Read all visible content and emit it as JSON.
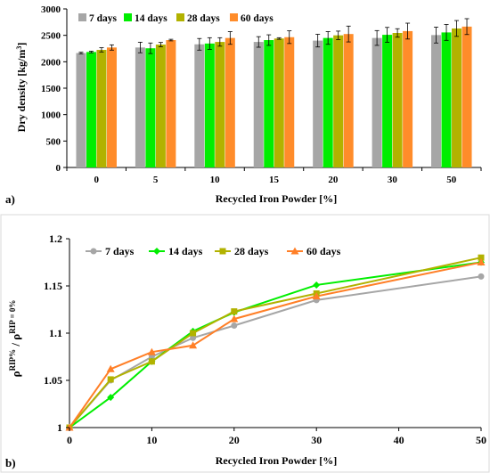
{
  "chart_data": [
    {
      "panel_label": "a)",
      "type": "bar",
      "xlabel": "Recycled Iron Powder [%]",
      "ylabel_prefix": "Dry density [kg/m",
      "ylabel_sup": "3",
      "ylabel_suffix": "]",
      "ylim": [
        0,
        3000
      ],
      "yticks": [
        0,
        500,
        1000,
        1500,
        2000,
        2500,
        3000
      ],
      "categories": [
        "0",
        "5",
        "10",
        "15",
        "20",
        "30",
        "50"
      ],
      "legend_position": "top-left",
      "grid": false,
      "series": [
        {
          "name": "7 days",
          "color": "#a6a6a6",
          "values": [
            2165,
            2270,
            2330,
            2375,
            2400,
            2450,
            2505
          ],
          "errors": [
            15,
            100,
            110,
            100,
            120,
            140,
            150
          ]
        },
        {
          "name": "14 days",
          "color": "#00ee00",
          "values": [
            2185,
            2255,
            2345,
            2410,
            2450,
            2510,
            2555
          ],
          "errors": [
            15,
            100,
            110,
            100,
            120,
            140,
            150
          ]
        },
        {
          "name": "28 days",
          "color": "#b2b200",
          "values": [
            2225,
            2325,
            2375,
            2440,
            2500,
            2545,
            2630
          ],
          "errors": [
            40,
            40,
            80,
            15,
            80,
            80,
            150
          ]
        },
        {
          "name": "60 days",
          "color": "#ff8c2a",
          "values": [
            2270,
            2410,
            2450,
            2465,
            2525,
            2580,
            2665
          ],
          "errors": [
            50,
            15,
            120,
            120,
            150,
            150,
            150
          ]
        }
      ]
    },
    {
      "panel_label": "b)",
      "type": "line",
      "xlabel": "Recycled Iron Powder [%]",
      "ylabel": "ρ RIP% / ρ RIP = 0%",
      "ylabel_parts": [
        "ρ",
        "RIP%",
        " / ρ",
        "RIP = 0%"
      ],
      "xlim": [
        0,
        50
      ],
      "ylim": [
        1,
        1.2
      ],
      "xticks": [
        0,
        10,
        20,
        30,
        40,
        50
      ],
      "yticks": [
        "1",
        "1.05",
        "1.1",
        "1.15",
        "1.2"
      ],
      "ytick_values": [
        1,
        1.05,
        1.1,
        1.15,
        1.2
      ],
      "x": [
        0,
        5,
        10,
        15,
        20,
        30,
        50
      ],
      "legend_position": "top-left",
      "grid": false,
      "series": [
        {
          "name": "7 days",
          "color": "#a6a6a6",
          "marker": "circle",
          "values": [
            1.0,
            1.05,
            1.075,
            1.095,
            1.108,
            1.135,
            1.16
          ]
        },
        {
          "name": "14 days",
          "color": "#00ee00",
          "marker": "diamond",
          "values": [
            1.0,
            1.032,
            1.07,
            1.102,
            1.122,
            1.151,
            1.175
          ]
        },
        {
          "name": "28 days",
          "color": "#b2b200",
          "marker": "square",
          "values": [
            1.0,
            1.051,
            1.07,
            1.1,
            1.123,
            1.142,
            1.18
          ]
        },
        {
          "name": "60 days",
          "color": "#ff7f27",
          "marker": "triangle",
          "values": [
            1.0,
            1.062,
            1.08,
            1.087,
            1.115,
            1.139,
            1.175
          ]
        }
      ]
    }
  ]
}
